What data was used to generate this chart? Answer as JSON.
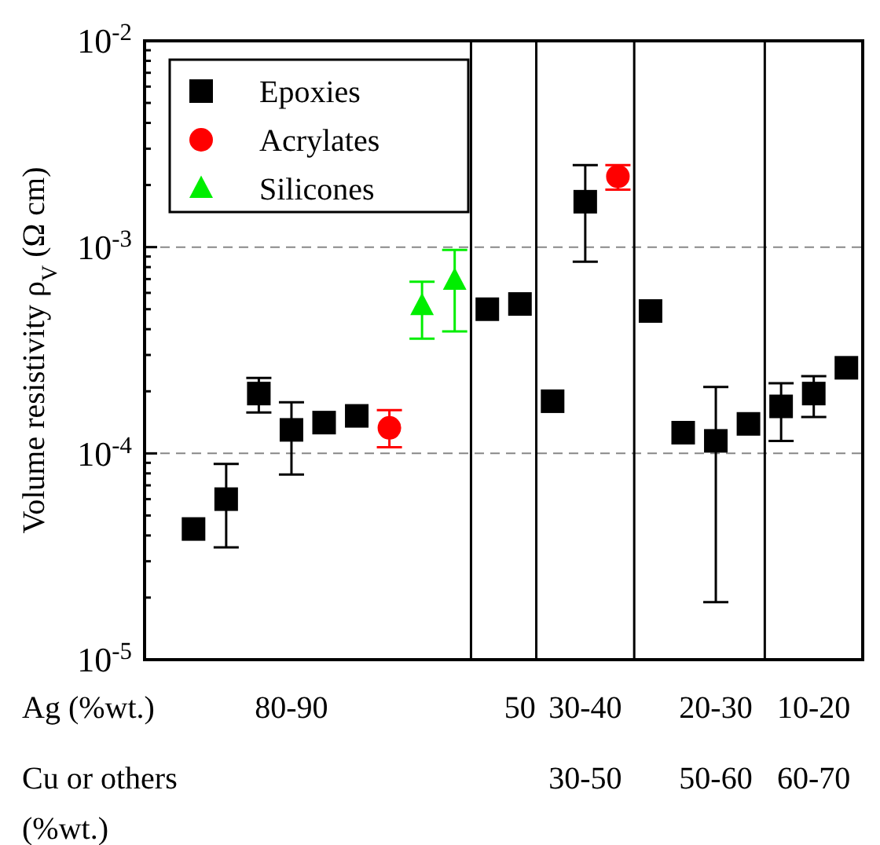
{
  "chart_data": {
    "type": "scatter",
    "ylabel": "Volume resistivity ρ$_{V}$ (Ω cm)",
    "xlabel": "Ag (%wt.)",
    "log": "y",
    "grid": "y",
    "legend": "top left",
    "ylim": [
      1e-05,
      0.01
    ],
    "yticks": [
      {
        "value": 1e-05,
        "label": "10$^{-5}$"
      },
      {
        "value": 2e-05,
        "label": null
      },
      {
        "value": 3e-05,
        "label": null
      },
      {
        "value": 4e-05,
        "label": null
      },
      {
        "value": 5e-05,
        "label": null
      },
      {
        "value": 6e-05,
        "label": null
      },
      {
        "value": 7e-05,
        "label": null
      },
      {
        "value": 8e-05,
        "label": null
      },
      {
        "value": 9e-05,
        "label": null
      },
      {
        "value": 0.0001,
        "label": "10$^{-4}$"
      },
      {
        "value": 0.0002,
        "label": null
      },
      {
        "value": 0.0003,
        "label": null
      },
      {
        "value": 0.0004,
        "label": null
      },
      {
        "value": 0.0005,
        "label": null
      },
      {
        "value": 0.0006,
        "label": null
      },
      {
        "value": 0.0007,
        "label": null
      },
      {
        "value": 0.0008,
        "label": null
      },
      {
        "value": 0.0009,
        "label": null
      },
      {
        "value": 0.001,
        "label": "10$^{-3}$"
      },
      {
        "value": 0.002,
        "label": null
      },
      {
        "value": 0.003,
        "label": null
      },
      {
        "value": 0.004,
        "label": null
      },
      {
        "value": 0.005,
        "label": null
      },
      {
        "value": 0.006,
        "label": null
      },
      {
        "value": 0.007,
        "label": null
      },
      {
        "value": 0.008,
        "label": null
      },
      {
        "value": 0.009,
        "label": null
      },
      {
        "value": 0.01,
        "label": "10$^{-2}$"
      }
    ],
    "categories": [
      null,
      null,
      null,
      null,
      "80-90",
      null,
      null,
      null,
      null,
      null,
      null,
      "50",
      null,
      "30-40",
      null,
      null,
      null,
      "20-30",
      null,
      null,
      "10-20",
      null
    ],
    "annotations": [
      "Cu or others (%wt.)",
      "30-50",
      "50-60",
      "60-70"
    ],
    "series": [
      {
        "name": "Epoxies",
        "color": "#000000",
        "marker": "square",
        "values": [
          null,
          4.3e-05,
          6e-05,
          0.000195,
          0.00013,
          0.000141,
          0.000152,
          null,
          null,
          null,
          0.0005,
          0.00053,
          0.000179,
          0.00166,
          null,
          0.00049,
          0.000126,
          0.000115,
          0.000139,
          0.000169,
          0.000195,
          0.00026
        ],
        "errors": [
          null,
          null,
          [
            3.5e-05,
            8.9e-05
          ],
          [
            0.000158,
            0.000232
          ],
          [
            7.9e-05,
            0.000177
          ],
          null,
          null,
          null,
          null,
          null,
          null,
          null,
          null,
          [
            0.00085,
            0.0025
          ],
          null,
          null,
          null,
          [
            1.9e-05,
            0.00021
          ],
          null,
          [
            0.000115,
            0.000219
          ],
          [
            0.00015,
            0.000237
          ],
          null
        ]
      },
      {
        "name": "Acrylates",
        "color": "#ff0000",
        "marker": "circle",
        "values": [
          null,
          null,
          null,
          null,
          null,
          null,
          null,
          0.000133,
          null,
          null,
          null,
          null,
          null,
          null,
          0.0022,
          null,
          null,
          null,
          null,
          null,
          null,
          null
        ],
        "errors": [
          null,
          null,
          null,
          null,
          null,
          null,
          null,
          [
            0.000107,
            0.000162
          ],
          null,
          null,
          null,
          null,
          null,
          null,
          [
            0.0019,
            0.0025
          ],
          null,
          null,
          null,
          null,
          null,
          null,
          null
        ]
      },
      {
        "name": "Silicones",
        "color": "#00ee00",
        "marker": "triangle",
        "values": [
          null,
          null,
          null,
          null,
          null,
          null,
          null,
          null,
          0.00052,
          0.00069,
          null,
          null,
          null,
          null,
          null,
          null,
          null,
          null,
          null,
          null,
          null,
          null
        ],
        "errors": [
          null,
          null,
          null,
          null,
          null,
          null,
          null,
          null,
          [
            0.00036,
            0.00068
          ],
          [
            0.00039,
            0.00097
          ],
          null,
          null,
          null,
          null,
          null,
          null,
          null,
          null,
          null,
          null,
          null,
          null
        ]
      }
    ]
  }
}
